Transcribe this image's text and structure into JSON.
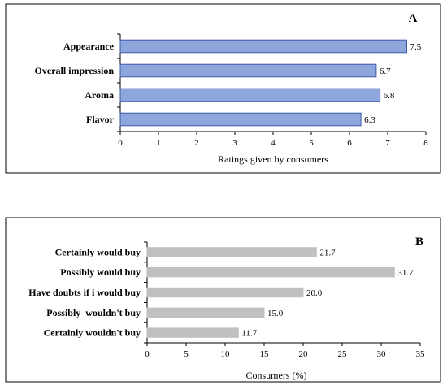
{
  "chart_data": [
    {
      "type": "bar",
      "orientation": "horizontal",
      "panel_label": "A",
      "categories": [
        "Appearance",
        "Overall impression",
        "Aroma",
        "Flavor"
      ],
      "values": [
        7.5,
        6.7,
        6.8,
        6.3
      ],
      "value_labels": [
        "7.5",
        "6.7",
        "6.8",
        "6.3"
      ],
      "xlabel": "Ratings given by consumers",
      "xlim": [
        0,
        8
      ],
      "xticks": [
        "0",
        "1",
        "2",
        "3",
        "4",
        "5",
        "6",
        "7",
        "8"
      ],
      "grid": false,
      "bar_fill": "#8ea6dc",
      "bar_stroke": "#3b5aa8"
    },
    {
      "type": "bar",
      "orientation": "horizontal",
      "panel_label": "B",
      "categories": [
        "Certainly would buy",
        "Possibly would buy",
        "Have doubts if i would buy",
        "Possibly  wouldn't buy",
        "Certainly wouldn't buy"
      ],
      "values": [
        21.7,
        31.7,
        20.0,
        15.0,
        11.7
      ],
      "value_labels": [
        "21.7",
        "31.7",
        "20.0",
        "15.0",
        "11.7"
      ],
      "xlabel": "Consumers (%)",
      "xlim": [
        0,
        35
      ],
      "xticks": [
        "0",
        "5",
        "10",
        "15",
        "20",
        "25",
        "30",
        "35"
      ],
      "grid": false,
      "bar_fill": "#c0c0c0",
      "bar_stroke": "#c0c0c0"
    }
  ]
}
